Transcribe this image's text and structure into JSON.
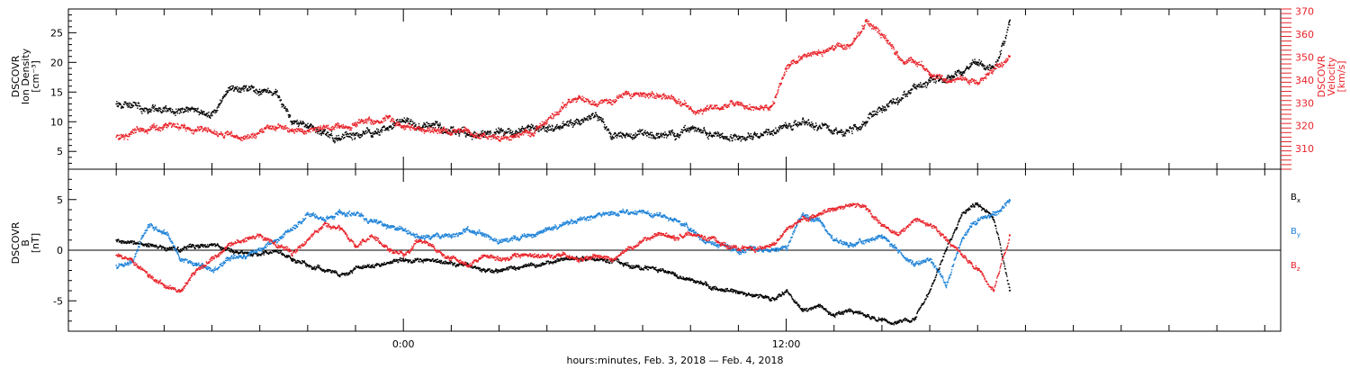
{
  "colors": {
    "black": "#000000",
    "red": "#e8232a",
    "blue": "#1f83d8"
  },
  "chart_data": [
    {
      "type": "scatter",
      "ylabel_left": [
        "DSCOVR",
        "Ion Density",
        "[cm⁻³]"
      ],
      "ylabel_right": [
        "DSCOVR",
        "Velocity",
        "[km/s]"
      ],
      "ylim": [
        2,
        29
      ],
      "ylim_right": [
        301,
        371
      ],
      "yticks": [
        5,
        10,
        15,
        20,
        25
      ],
      "yticks_right": [
        310,
        320,
        330,
        340,
        350,
        360,
        370
      ],
      "grid": false,
      "series": [
        {
          "color": "#000000",
          "axis": "left",
          "x": [
            -9.0,
            -8.0,
            -7.0,
            -6.0,
            -5.5,
            -5.0,
            -4.5,
            -4.0,
            -3.5,
            -3.0,
            -2.5,
            -2.0,
            -1.5,
            -1.0,
            -0.5,
            0.0,
            0.5,
            1.0,
            1.5,
            2.0,
            2.5,
            3.0,
            3.5,
            4.0,
            4.5,
            5.0,
            5.5,
            6.0,
            6.5,
            7.0,
            7.5,
            8.0,
            8.5,
            9.0,
            9.5,
            10.0,
            10.5,
            11.0,
            11.5,
            12.0,
            12.5,
            13.0,
            13.5,
            14.0,
            14.5,
            15.0,
            15.5,
            16.0,
            16.5,
            17.0,
            17.5,
            18.0,
            18.5,
            19.0
          ],
          "y": [
            13,
            12,
            12,
            11,
            15,
            16,
            15,
            15,
            10,
            9,
            8,
            7,
            8,
            8,
            9,
            10,
            9,
            9,
            8,
            8,
            8,
            8,
            8,
            9,
            9,
            9,
            10,
            11,
            8,
            8,
            8,
            8,
            8,
            9,
            8,
            8,
            7,
            8,
            8,
            9,
            10,
            9,
            8,
            9,
            10,
            12,
            14,
            16,
            17,
            17,
            18,
            20,
            19,
            27
          ]
        },
        {
          "color": "#e8232a",
          "axis": "right",
          "x": [
            -9.0,
            -8.5,
            -8.0,
            -7.5,
            -7.0,
            -6.5,
            -6.0,
            -5.5,
            -5.0,
            -4.5,
            -4.0,
            -3.5,
            -3.0,
            -2.5,
            -2.0,
            -1.5,
            -1.0,
            -0.5,
            0.0,
            0.5,
            1.0,
            1.5,
            2.0,
            2.5,
            3.0,
            3.5,
            4.0,
            4.5,
            5.0,
            5.5,
            6.0,
            6.5,
            7.0,
            7.5,
            8.0,
            8.5,
            9.0,
            9.5,
            10.0,
            10.5,
            11.0,
            11.5,
            12.0,
            12.5,
            13.0,
            13.5,
            14.0,
            14.5,
            15.0,
            15.5,
            16.0,
            16.5,
            17.0,
            17.5,
            18.0,
            18.5,
            19.0
          ],
          "y": [
            315,
            317,
            318,
            320,
            319,
            318,
            317,
            316,
            314,
            318,
            319,
            318,
            318,
            320,
            319,
            320,
            322,
            324,
            320,
            318,
            318,
            317,
            317,
            316,
            315,
            316,
            318,
            321,
            330,
            332,
            329,
            330,
            335,
            334,
            333,
            331,
            328,
            327,
            328,
            329,
            328,
            328,
            345,
            350,
            352,
            353,
            355,
            366,
            360,
            350,
            348,
            343,
            340,
            340,
            338,
            345,
            350
          ]
        }
      ]
    },
    {
      "type": "scatter",
      "ylabel": [
        "DSCOVR",
        "B",
        "[nT]"
      ],
      "ylim": [
        -8,
        8
      ],
      "yticks": [
        -5,
        0,
        5
      ],
      "grid": false,
      "legend": {
        "position": "right",
        "entries": [
          {
            "base": "B",
            "sub": "x",
            "color": "#000000"
          },
          {
            "base": "B",
            "sub": "y",
            "color": "#1f83d8"
          },
          {
            "base": "B",
            "sub": "z",
            "color": "#e8232a"
          }
        ]
      },
      "series": [
        {
          "color": "#000000",
          "x": [
            -9.0,
            -8.0,
            -7.0,
            -6.0,
            -5.0,
            -4.0,
            -3.5,
            -3.0,
            -2.5,
            -2.0,
            -1.0,
            0.0,
            1.0,
            2.0,
            2.5,
            3.0,
            4.0,
            5.0,
            6.0,
            7.0,
            8.0,
            8.5,
            9.0,
            9.5,
            10.0,
            10.5,
            11.0,
            11.5,
            12.0,
            12.5,
            13.0,
            13.5,
            14.0,
            14.5,
            15.0,
            15.5,
            16.0,
            16.5,
            17.0,
            17.5,
            18.0,
            18.5,
            19.0
          ],
          "y": [
            1.0,
            0.5,
            0.0,
            0.5,
            -0.5,
            0.0,
            -1.0,
            -1.5,
            -2.0,
            -2.5,
            -1.5,
            -1.0,
            -1.0,
            -1.5,
            -2.0,
            -2.0,
            -1.5,
            -1.0,
            -1.0,
            -1.5,
            -2.0,
            -2.5,
            -3.0,
            -3.5,
            -4.0,
            -4.2,
            -4.5,
            -5.0,
            -4.0,
            -6.0,
            -5.5,
            -6.5,
            -6.0,
            -6.5,
            -7.0,
            -7.2,
            -6.8,
            -4.0,
            0.0,
            3.5,
            4.5,
            3.0,
            -4.0
          ]
        },
        {
          "color": "#1f83d8",
          "x": [
            -9.0,
            -8.5,
            -8.0,
            -7.5,
            -7.0,
            -6.5,
            -6.0,
            -5.5,
            -5.0,
            -4.5,
            -4.0,
            -3.5,
            -3.0,
            -2.5,
            -2.0,
            -1.5,
            -1.0,
            -0.5,
            0.0,
            0.5,
            1.0,
            1.5,
            2.0,
            2.5,
            3.0,
            3.5,
            4.0,
            4.5,
            5.0,
            5.5,
            6.0,
            6.5,
            7.0,
            7.5,
            8.0,
            8.5,
            9.0,
            9.5,
            10.0,
            10.5,
            11.0,
            11.5,
            12.0,
            12.5,
            13.0,
            13.5,
            14.0,
            14.5,
            15.0,
            15.5,
            16.0,
            16.5,
            17.0,
            17.5,
            18.0,
            18.5,
            19.0
          ],
          "y": [
            -1.5,
            -1.0,
            2.5,
            2.0,
            -1.0,
            -1.5,
            -2.0,
            -1.0,
            -0.5,
            0.0,
            1.0,
            2.0,
            3.5,
            3.0,
            4.0,
            3.5,
            3.0,
            2.5,
            2.0,
            1.0,
            1.5,
            1.5,
            2.0,
            1.5,
            1.0,
            1.2,
            1.5,
            2.0,
            2.5,
            3.0,
            3.2,
            3.5,
            3.8,
            3.8,
            3.5,
            3.0,
            2.0,
            1.0,
            0.5,
            0.0,
            0.3,
            0.0,
            0.0,
            3.5,
            3.0,
            1.0,
            0.5,
            1.0,
            1.5,
            0.0,
            -1.5,
            -1.0,
            -3.5,
            1.0,
            3.0,
            3.5,
            5.0
          ]
        },
        {
          "color": "#e8232a",
          "x": [
            -9.0,
            -8.5,
            -8.0,
            -7.5,
            -7.0,
            -6.5,
            -6.0,
            -5.5,
            -5.0,
            -4.5,
            -4.0,
            -3.5,
            -3.0,
            -2.5,
            -2.0,
            -1.5,
            -1.0,
            -0.5,
            0.0,
            0.5,
            1.0,
            1.5,
            2.0,
            2.5,
            3.0,
            3.5,
            4.0,
            4.5,
            5.0,
            5.5,
            6.0,
            6.5,
            7.0,
            7.5,
            8.0,
            8.5,
            9.0,
            9.5,
            10.0,
            10.5,
            11.0,
            11.5,
            12.0,
            12.5,
            13.0,
            13.5,
            14.0,
            14.5,
            15.0,
            15.5,
            16.0,
            16.5,
            17.0,
            17.5,
            18.0,
            18.5,
            19.0
          ],
          "y": [
            -0.5,
            -1.0,
            -2.5,
            -3.5,
            -4.0,
            -2.0,
            -1.0,
            0.5,
            1.0,
            1.5,
            0.5,
            -0.5,
            1.0,
            2.5,
            2.0,
            0.5,
            1.5,
            0.0,
            -0.5,
            1.0,
            0.0,
            -1.0,
            -1.5,
            -0.5,
            -1.0,
            -0.5,
            -0.5,
            -0.5,
            -0.5,
            -1.0,
            -0.5,
            -1.0,
            0.0,
            1.0,
            1.5,
            1.0,
            1.5,
            1.0,
            0.5,
            0.2,
            0.0,
            0.3,
            2.0,
            3.0,
            3.5,
            4.0,
            4.5,
            4.0,
            2.5,
            1.5,
            3.0,
            2.5,
            1.0,
            -0.5,
            -2.0,
            -4.0,
            1.5
          ]
        }
      ]
    }
  ],
  "xaxis": {
    "xlim": [
      -10.5,
      27.5
    ],
    "major_ticks": [
      0,
      12
    ],
    "major_labels": [
      "0:00",
      "12:00"
    ],
    "minor_tick_step": 1.5,
    "label": "hours:minutes, Feb.  3, 2018 — Feb.  4, 2018"
  }
}
